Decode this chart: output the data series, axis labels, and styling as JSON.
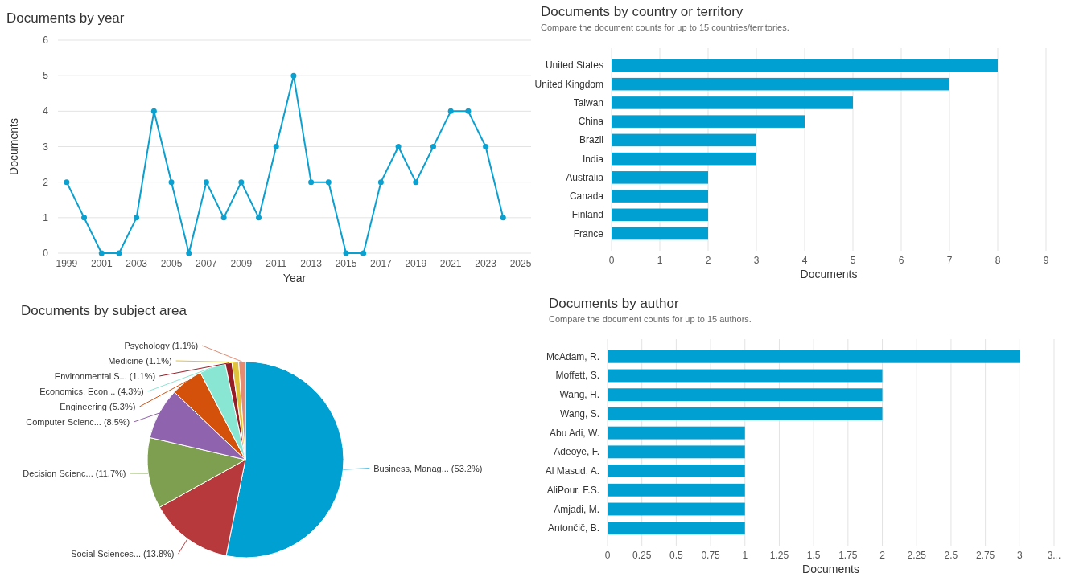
{
  "chart_data": [
    {
      "type": "line",
      "title": "Documents by year",
      "xlabel": "Year",
      "ylabel": "Documents",
      "x": [
        1999,
        2000,
        2001,
        2002,
        2003,
        2004,
        2005,
        2006,
        2007,
        2008,
        2009,
        2010,
        2011,
        2012,
        2013,
        2014,
        2015,
        2016,
        2017,
        2018,
        2019,
        2020,
        2021,
        2022,
        2023,
        2024
      ],
      "series": [
        {
          "color": "#0aa0d0",
          "values": [
            2,
            1,
            0,
            0,
            1,
            4,
            2,
            0,
            2,
            1,
            2,
            1,
            3,
            5,
            2,
            2,
            0,
            0,
            2,
            3,
            2,
            3,
            4,
            4,
            3,
            1
          ]
        }
      ],
      "xlim": [
        1998.5,
        2025.6
      ],
      "xticks": [
        1999,
        2001,
        2003,
        2005,
        2007,
        2009,
        2011,
        2013,
        2015,
        2017,
        2019,
        2021,
        2023,
        2025
      ],
      "ylim": [
        0,
        6
      ],
      "yticks": [
        0,
        1,
        2,
        3,
        4,
        5,
        6
      ],
      "grid": "y",
      "marker": "circle",
      "line_style": "solid"
    },
    {
      "type": "bar",
      "orientation": "horizontal",
      "title": "Documents by country or territory",
      "subtitle": "Compare the document counts for up to 15 countries/territories.",
      "xlabel": "Documents",
      "categories": [
        "United States",
        "United Kingdom",
        "Taiwan",
        "China",
        "Brazil",
        "India",
        "Australia",
        "Canada",
        "Finland",
        "France"
      ],
      "series": [
        {
          "color": "#00a0d2",
          "values": [
            8,
            7,
            5,
            4,
            3,
            3,
            2,
            2,
            2,
            2
          ]
        }
      ],
      "xlim": [
        0,
        9
      ],
      "xticks": [
        0,
        1,
        2,
        3,
        4,
        5,
        6,
        7,
        8,
        9
      ],
      "grid": "x"
    },
    {
      "type": "pie",
      "title": "Documents by subject area",
      "categories": [
        "Business, Manag... (53.2%)",
        "Social Sciences... (13.8%)",
        "Decision Scienc... (11.7%)",
        "Computer Scienc... (8.5%)",
        "Engineering (5.3%)",
        "Economics, Econ... (4.3%)",
        "Environmental S... (1.1%)",
        "Medicine (1.1%)",
        "Psychology (1.1%)"
      ],
      "values": [
        53.2,
        13.8,
        11.7,
        8.5,
        5.3,
        4.3,
        1.1,
        1.1,
        1.1
      ],
      "colors": [
        "#00a0d2",
        "#b8393c",
        "#7e9f4f",
        "#9063ae",
        "#d4510b",
        "#88e6d3",
        "#961c26",
        "#e0c33b",
        "#e48b73"
      ]
    },
    {
      "type": "bar",
      "orientation": "horizontal",
      "title": "Documents by author",
      "subtitle": "Compare the document counts for up to 15 authors.",
      "xlabel": "Documents",
      "categories": [
        "McAdam, R.",
        "Moffett, S.",
        "Wang, H.",
        "Wang, S.",
        "Abu Adi, W.",
        "Adeoye, F.",
        "Al Masud, A.",
        "AliPour, F.S.",
        "Amjadi, M.",
        "Antončič, B."
      ],
      "series": [
        {
          "color": "#00a0d2",
          "values": [
            3,
            2,
            2,
            2,
            1,
            1,
            1,
            1,
            1,
            1
          ]
        }
      ],
      "xlim": [
        0,
        3.25
      ],
      "xticks": [
        0,
        0.25,
        0.5,
        0.75,
        1,
        1.25,
        1.5,
        1.75,
        2,
        2.25,
        2.5,
        2.75,
        3,
        {
          "value": 3.25,
          "label": "3..."
        }
      ],
      "grid": "x"
    }
  ]
}
